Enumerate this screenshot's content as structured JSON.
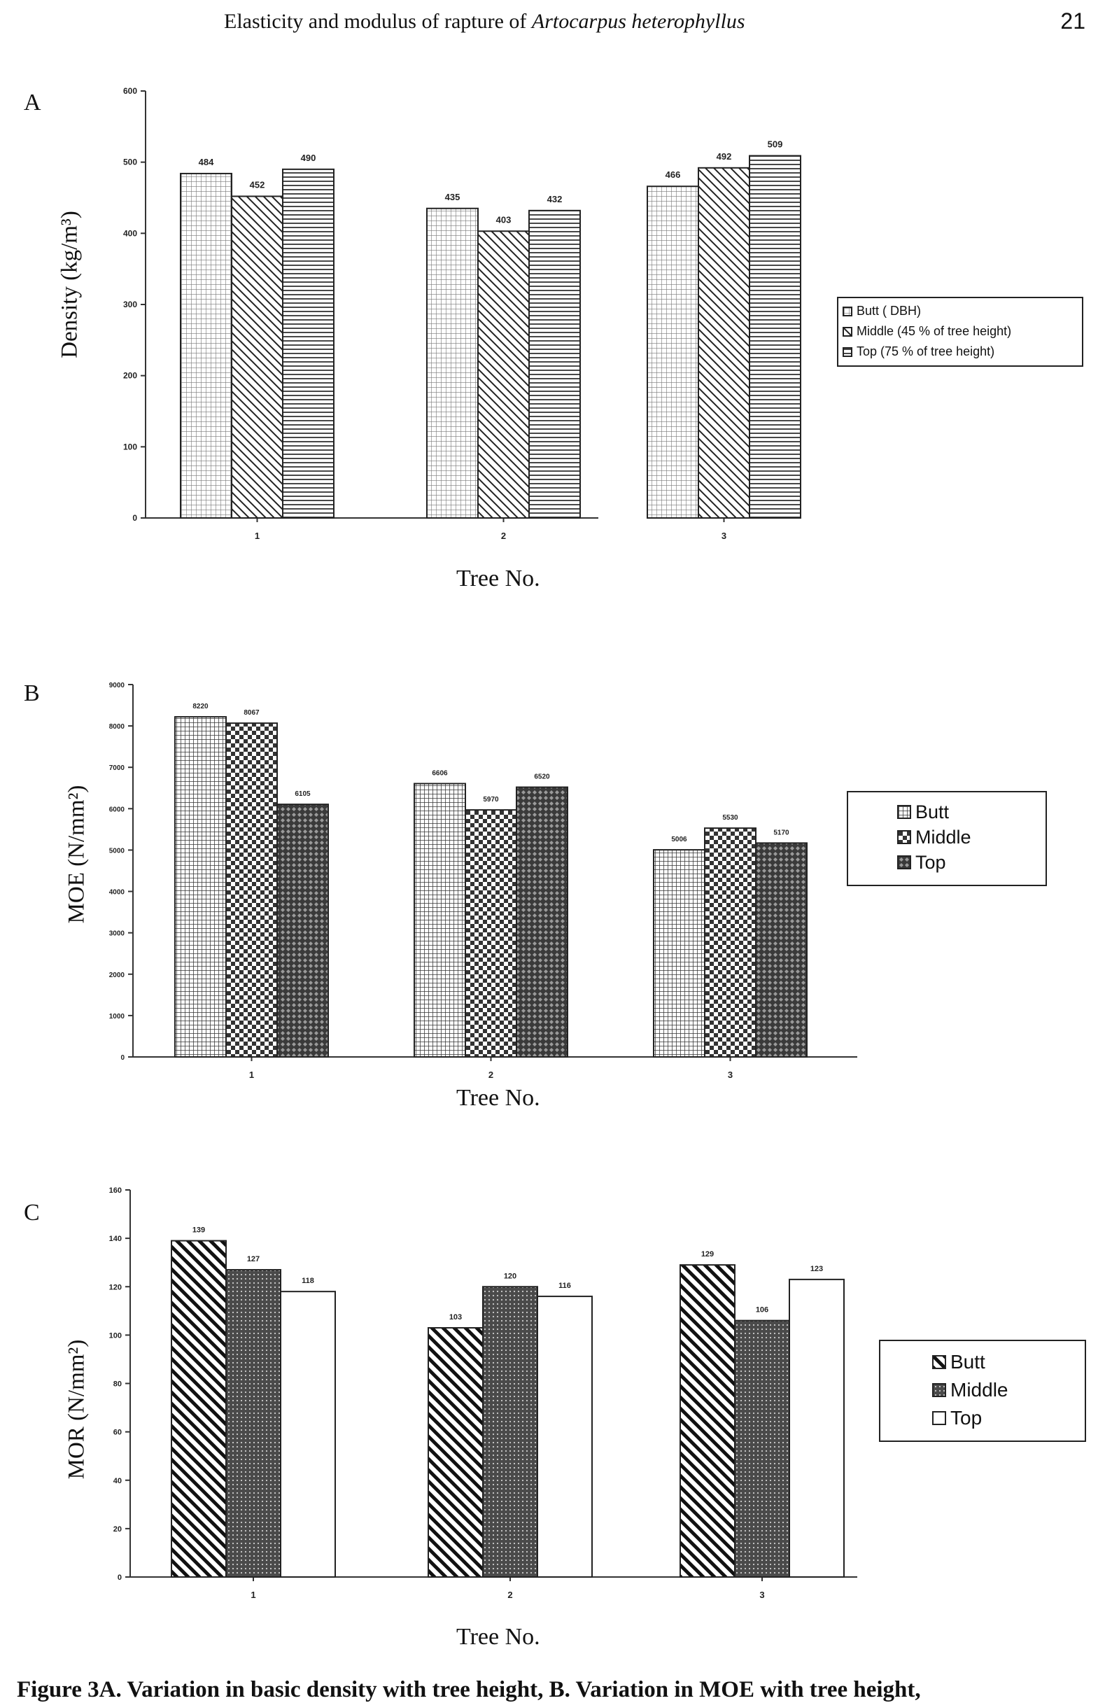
{
  "header": {
    "title_plain": "Elasticity and modulus of rapture of ",
    "title_italic": "Artocarpus  heterophyllus",
    "page_number": "21"
  },
  "caption": "Figure 3A. Variation in basic density with tree height, B. Variation in MOE with tree height,",
  "chart_data": [
    {
      "id": "A",
      "type": "bar",
      "panel_letter": "A",
      "categories": [
        "1",
        "2",
        "3"
      ],
      "series": [
        {
          "name": "Butt ( DBH)",
          "values": [
            484,
            435,
            466
          ],
          "labels": [
            "484",
            "435",
            "466"
          ]
        },
        {
          "name": "Middle (45 % of tree height)",
          "values": [
            452,
            403,
            492
          ],
          "labels": [
            "452",
            "403",
            "492"
          ]
        },
        {
          "name": "Top (75 % of tree height)",
          "values": [
            490,
            432,
            509
          ],
          "labels": [
            "490",
            "432",
            "509"
          ]
        }
      ],
      "legend": [
        "Butt ( DBH)",
        "Middle (45 % of tree height)",
        "Top (75 % of tree height)"
      ],
      "legend_position": "right",
      "xlabel": "Tree No.",
      "ylabel": "Density (kg/m³)",
      "ylim": [
        0,
        600
      ],
      "yticks": [
        0,
        100,
        200,
        300,
        400,
        500,
        600
      ],
      "yticklabels": [
        "0",
        "100",
        "200",
        "300",
        "400",
        "500",
        "600"
      ],
      "grid": false
    },
    {
      "id": "B",
      "type": "bar",
      "panel_letter": "B",
      "categories": [
        "1",
        "2",
        "3"
      ],
      "series": [
        {
          "name": "Butt",
          "values": [
            8220,
            6606,
            5006
          ],
          "labels": [
            "8220",
            "6606",
            "5006"
          ]
        },
        {
          "name": "Middle",
          "values": [
            8067,
            5970,
            5530
          ],
          "labels": [
            "8067",
            "5970",
            "5530"
          ]
        },
        {
          "name": "Top",
          "values": [
            6105,
            6520,
            5170
          ],
          "labels": [
            "6105",
            "6520",
            "5170"
          ]
        }
      ],
      "legend": [
        "Butt",
        "Middle",
        "Top"
      ],
      "legend_position": "right",
      "xlabel": "Tree No.",
      "ylabel": "MOE (N/mm²)",
      "ylim": [
        0,
        9000
      ],
      "yticks": [
        0,
        1000,
        2000,
        3000,
        4000,
        5000,
        6000,
        7000,
        8000,
        9000
      ],
      "yticklabels": [
        "0",
        "1000",
        "2000",
        "3000",
        "4000",
        "5000",
        "6000",
        "7000",
        "8000",
        "9000"
      ],
      "grid": false
    },
    {
      "id": "C",
      "type": "bar",
      "panel_letter": "C",
      "categories": [
        "1",
        "2",
        "3"
      ],
      "series": [
        {
          "name": "Butt",
          "values": [
            139,
            103,
            129
          ],
          "labels": [
            "139",
            "103",
            "129"
          ]
        },
        {
          "name": "Middle",
          "values": [
            127,
            120,
            106
          ],
          "labels": [
            "127",
            "120",
            "106"
          ]
        },
        {
          "name": "Top",
          "values": [
            118,
            116,
            123
          ],
          "labels": [
            "118",
            "116",
            "123"
          ]
        }
      ],
      "legend": [
        "Butt",
        "Middle",
        "Top"
      ],
      "legend_position": "right",
      "xlabel": "Tree No.",
      "ylabel": "MOR (N/mm²)",
      "ylim": [
        0,
        160
      ],
      "yticks": [
        0,
        20,
        40,
        60,
        80,
        100,
        120,
        140,
        160
      ],
      "yticklabels": [
        "0",
        "20",
        "40",
        "60",
        "80",
        "100",
        "120",
        "140",
        "160"
      ],
      "grid": false
    }
  ]
}
